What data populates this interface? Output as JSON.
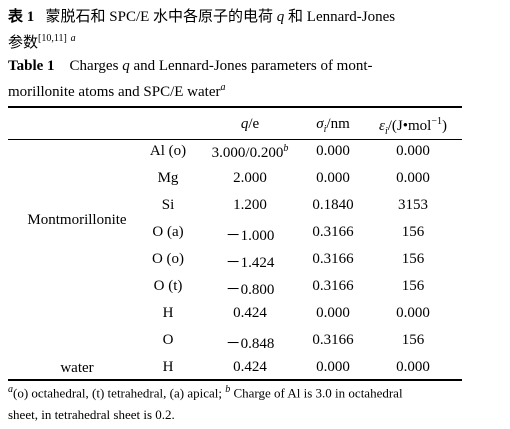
{
  "title_cn": {
    "label": "表 1",
    "text": "蒙脱石和 SPC/E 水中各原子的电荷",
    "q": "q",
    "text2": "和 Lennard-Jones",
    "line2": "参数",
    "ref": "[10,11]",
    "note": "a"
  },
  "title_en": {
    "label": "Table 1",
    "text": "Charges",
    "q": "q",
    "text2": "and Lennard-Jones parameters of mont-",
    "line2": "morillonite atoms and SPC/E water",
    "note": "a"
  },
  "table": {
    "header": {
      "q": "q",
      "q_unit": "/e",
      "sigma": "σ",
      "sigma_sub": "i",
      "sigma_unit": "/nm",
      "eps": "ε",
      "eps_sub": "i",
      "eps_unit": "/(J•mol",
      "eps_exp": "−1",
      "eps_close": ")"
    },
    "groups": [
      {
        "name": "Montmorillonite",
        "rows": [
          [
            "Al (o)",
            "3.000/0.200",
            "0.000",
            "0.000"
          ],
          [
            "Mg",
            "2.000",
            "0.000",
            "0.000"
          ],
          [
            "Si",
            "1.200",
            "0.1840",
            "3153"
          ],
          [
            "O (a)",
            "－1.000",
            "0.3166",
            "156"
          ],
          [
            "O (o)",
            "－1.424",
            "0.3166",
            "156"
          ],
          [
            "O (t)",
            "－0.800",
            "0.3166",
            "156"
          ]
        ]
      },
      {
        "name": "water",
        "rows": [
          [
            "H",
            "0.424",
            "0.000",
            "0.000"
          ],
          [
            "O",
            "－0.848",
            "0.3166",
            "156"
          ],
          [
            "H",
            "0.424",
            "0.000",
            "0.000"
          ]
        ]
      }
    ],
    "al_charge_note": "b"
  },
  "footnote": {
    "a": "a",
    "text_a": "(o) octahedral, (t) tetrahedral, (a) apical;",
    "b": "b",
    "text_b": "Charge of Al is 3.0 in octahedral",
    "line2": "sheet, in tetrahedral sheet is 0.2."
  }
}
